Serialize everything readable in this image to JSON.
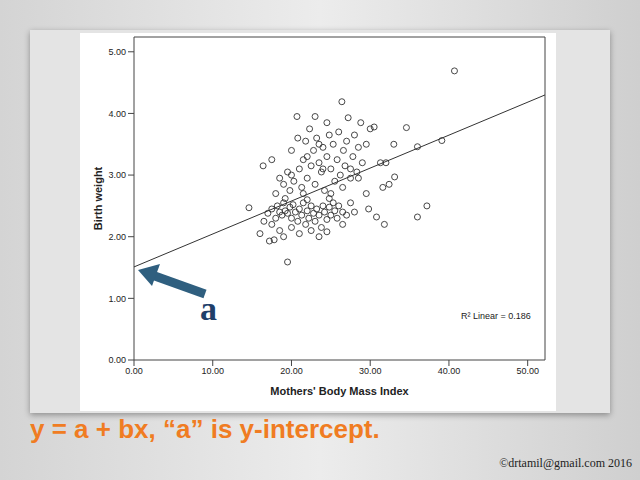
{
  "chart_data": {
    "type": "scatter",
    "x_label": "Mothers' Body Mass Index",
    "y_label": "Birth weight",
    "marker": "o",
    "color": "#333333",
    "grid": false,
    "legend": false,
    "x": [
      17.0,
      17.5,
      18.0,
      18.2,
      18.5,
      18.8,
      19.0,
      19.2,
      19.5,
      19.8,
      20.0,
      20.2,
      20.5,
      20.8,
      21.0,
      21.3,
      21.5,
      21.8,
      22.0,
      22.2,
      22.5,
      22.8,
      23.0,
      23.2,
      23.5,
      23.8,
      24.0,
      24.2,
      24.5,
      24.8,
      25.0,
      25.3,
      25.5,
      25.8,
      26.0,
      26.5,
      27.0,
      27.5,
      18.5,
      19.0,
      20.0,
      21.0,
      22.5,
      23.5,
      24.5,
      17.5,
      16.5,
      16.0,
      17.8,
      26.5,
      28.0,
      29.8,
      30.8,
      31.8,
      36.0,
      37.2,
      19.5,
      14.6,
      17.2,
      22.0,
      24.8,
      19.2,
      16.4,
      17.5,
      18.5,
      19.0,
      19.5,
      20.0,
      20.3,
      20.7,
      20.8,
      21.0,
      21.3,
      21.5,
      21.8,
      22.0,
      22.3,
      22.5,
      22.8,
      23.0,
      23.2,
      23.5,
      23.8,
      24.0,
      24.2,
      24.5,
      24.8,
      25.0,
      25.3,
      25.5,
      25.8,
      26.0,
      26.2,
      26.4,
      26.6,
      26.8,
      27.0,
      27.2,
      27.5,
      27.8,
      28.0,
      28.3,
      28.5,
      28.8,
      29.0,
      29.5,
      30.0,
      30.5,
      31.3,
      32.0,
      31.6,
      32.4,
      33.1,
      33.0,
      34.6,
      36.0,
      39.1,
      40.7,
      23.0,
      24.5,
      21.5,
      25.0,
      26.5,
      20.0,
      22.0,
      23.5,
      18.0,
      19.8,
      27.5,
      28.5,
      29.5,
      24.0
    ],
    "values": [
      2.38,
      2.45,
      2.3,
      2.5,
      2.4,
      2.35,
      2.55,
      2.42,
      2.38,
      2.48,
      2.3,
      2.52,
      2.4,
      2.25,
      2.45,
      2.35,
      2.55,
      2.2,
      2.42,
      2.3,
      2.5,
      2.38,
      2.25,
      2.45,
      2.35,
      2.15,
      2.5,
      2.4,
      2.28,
      2.48,
      2.35,
      2.55,
      2.42,
      2.3,
      2.5,
      2.4,
      2.35,
      2.55,
      2.1,
      2.0,
      2.15,
      2.05,
      2.1,
      2.0,
      2.08,
      2.2,
      2.25,
      2.05,
      1.95,
      2.2,
      2.4,
      2.45,
      2.32,
      2.2,
      2.32,
      2.5,
      1.59,
      2.47,
      1.93,
      2.6,
      2.62,
      2.62,
      3.15,
      3.25,
      2.95,
      2.85,
      3.05,
      3.4,
      2.9,
      3.95,
      3.6,
      3.1,
      2.8,
      3.25,
      3.55,
      2.95,
      3.75,
      3.15,
      3.4,
      2.85,
      3.6,
      3.2,
      3.05,
      3.45,
      2.75,
      3.3,
      3.65,
      3.1,
      3.5,
      2.9,
      3.25,
      3.7,
      3.0,
      4.19,
      3.4,
      3.15,
      3.55,
      3.93,
      2.95,
      3.3,
      3.65,
      3.05,
      3.45,
      3.85,
      3.2,
      3.5,
      3.75,
      3.78,
      3.2,
      3.2,
      2.8,
      2.85,
      2.97,
      3.5,
      3.77,
      3.46,
      3.56,
      4.69,
      3.95,
      3.85,
      2.7,
      2.7,
      2.8,
      3.0,
      3.3,
      3.5,
      2.7,
      2.75,
      3.1,
      2.95,
      2.7,
      3.1
    ],
    "fit_line": {
      "x": [
        0,
        52.2
      ],
      "values": [
        1.51,
        4.3
      ],
      "color": "#333333"
    },
    "xlim": [
      0,
      52.2
    ],
    "xticks": [
      {
        "value": 0,
        "label": "0.00"
      },
      {
        "value": 10,
        "label": "10.00"
      },
      {
        "value": 20,
        "label": "20.00"
      },
      {
        "value": 30,
        "label": "30.00"
      },
      {
        "value": 40,
        "label": "40.00"
      },
      {
        "value": 50,
        "label": "50.00"
      }
    ],
    "ylim": [
      0,
      5.24
    ],
    "yticks": [
      {
        "value": 0,
        "label": "0.00"
      },
      {
        "value": 1,
        "label": "1.00"
      },
      {
        "value": 2,
        "label": "2.00"
      },
      {
        "value": 3,
        "label": "3.00"
      },
      {
        "value": 4,
        "label": "4.00"
      },
      {
        "value": 5,
        "label": "5.00"
      }
    ],
    "annotations": [
      {
        "text": "R² Linear = 0.186"
      },
      {
        "text": "a"
      }
    ]
  },
  "slide": {
    "caption": "y = a + bx, “a” is y-intercept.",
    "credit": "©drtamil@gmail.com 2016"
  }
}
